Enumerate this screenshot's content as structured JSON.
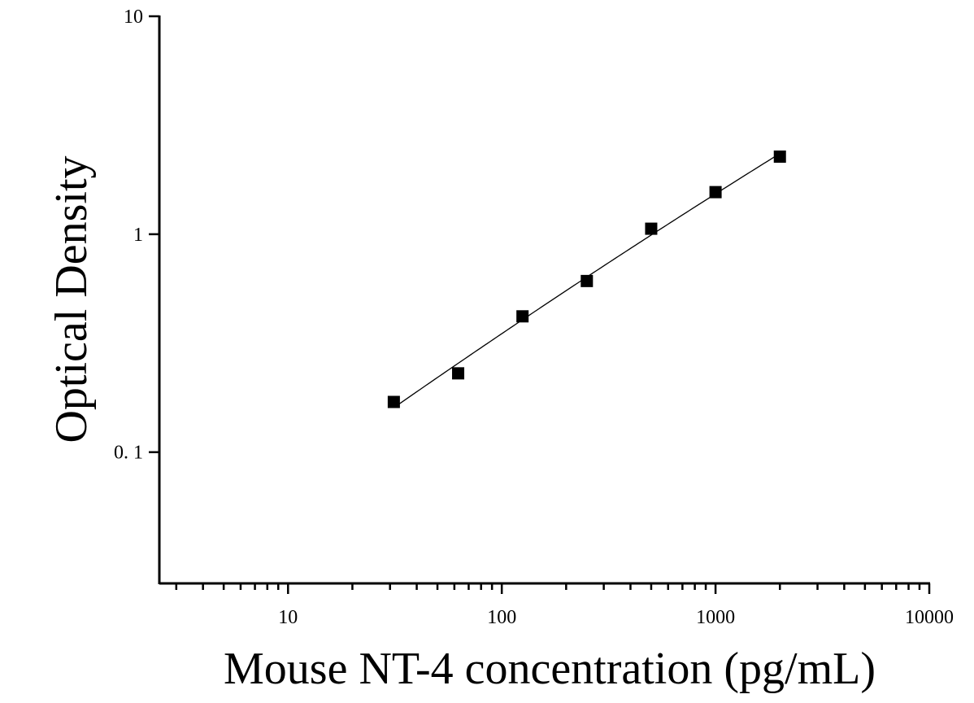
{
  "chart_data": {
    "type": "scatter",
    "title": "",
    "xlabel": "Mouse NT-4 concentration (pg/mL)",
    "ylabel": "Optical Density",
    "x_scale": "log",
    "y_scale": "log",
    "xlim": [
      2.5,
      10000
    ],
    "ylim": [
      0.025,
      10
    ],
    "x_ticks": [
      {
        "value": 10,
        "label": "10"
      },
      {
        "value": 100,
        "label": "100"
      },
      {
        "value": 1000,
        "label": "1000"
      },
      {
        "value": 10000,
        "label": "10000"
      }
    ],
    "y_ticks": [
      {
        "value": 0.1,
        "label": "0. 1"
      },
      {
        "value": 1,
        "label": "1"
      },
      {
        "value": 10,
        "label": "10"
      }
    ],
    "grid": false,
    "legend": "none",
    "series": [
      {
        "marker": "square",
        "color": "#000000",
        "points": [
          {
            "x": 31.25,
            "y": 0.17
          },
          {
            "x": 62.5,
            "y": 0.23
          },
          {
            "x": 125,
            "y": 0.42
          },
          {
            "x": 250,
            "y": 0.61
          },
          {
            "x": 500,
            "y": 1.06
          },
          {
            "x": 1000,
            "y": 1.56
          },
          {
            "x": 2000,
            "y": 2.27
          }
        ]
      }
    ],
    "fit_curve": {
      "color": "#000000",
      "style": "solid"
    }
  }
}
